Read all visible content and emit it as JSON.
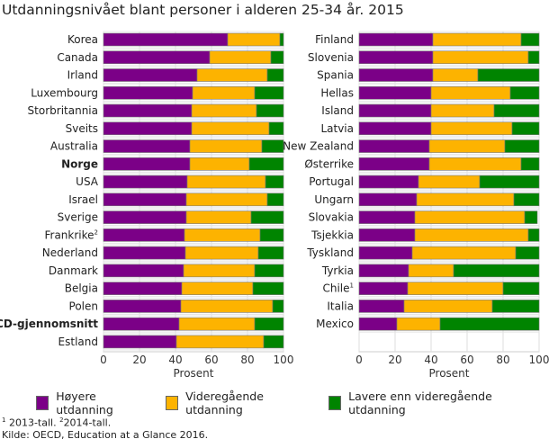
{
  "title": "Utdanningsnivået blant personer i alderen 25-34 år. 2015",
  "colors": {
    "higher": "#7b0087",
    "upper_secondary": "#fdb300",
    "lower": "#008400"
  },
  "footnotes": {
    "n1": "1",
    "t1": " 2013-tall. ",
    "n2": "2",
    "t2": "2014-tall.",
    "source": "Kilde: OECD, Education at a Glance 2016."
  },
  "legend": [
    "Høyere utdanning",
    "Videregående utdanning",
    "Lavere enn videregående utdanning"
  ],
  "chart_data": [
    {
      "type": "bar",
      "orientation": "horizontal",
      "stacked": true,
      "xlabel": "Prosent",
      "xlim": [
        0,
        100
      ],
      "xticks": [
        "0",
        "20",
        "40",
        "60",
        "80",
        "100"
      ],
      "grid": true,
      "categories": [
        {
          "label": "Korea"
        },
        {
          "label": "Canada"
        },
        {
          "label": "Irland"
        },
        {
          "label": "Luxembourg"
        },
        {
          "label": "Storbritannia"
        },
        {
          "label": "Sveits"
        },
        {
          "label": "Australia"
        },
        {
          "label": "Norge",
          "bold": true
        },
        {
          "label": "USA"
        },
        {
          "label": "Israel"
        },
        {
          "label": "Sverige"
        },
        {
          "label": "Frankrike",
          "sup": "2"
        },
        {
          "label": "Nederland"
        },
        {
          "label": "Danmark"
        },
        {
          "label": "Belgia"
        },
        {
          "label": "Polen"
        },
        {
          "label": "OECD-gjennomsnitt",
          "bold": true
        },
        {
          "label": "Estland"
        }
      ],
      "series": [
        {
          "name": "Høyere utdanning",
          "values": [
            69,
            59,
            52,
            49.5,
            49,
            49,
            48,
            48,
            46.5,
            46,
            46,
            45,
            45.5,
            44.5,
            43.5,
            43,
            42,
            40.5
          ]
        },
        {
          "name": "Videregående utdanning",
          "values": [
            29,
            34,
            39,
            34.5,
            36,
            43,
            40,
            33,
            43.5,
            45,
            36,
            42,
            40.5,
            39.5,
            39.5,
            51,
            42,
            48.5
          ]
        },
        {
          "name": "Lavere enn videregående utdanning",
          "values": [
            2,
            7,
            9,
            16,
            15,
            8,
            12,
            19,
            10,
            9,
            18,
            13,
            14,
            16,
            17,
            6,
            16,
            11
          ]
        }
      ]
    },
    {
      "type": "bar",
      "orientation": "horizontal",
      "stacked": true,
      "xlabel": "Prosent",
      "xlim": [
        0,
        100
      ],
      "xticks": [
        "0",
        "20",
        "40",
        "60",
        "80",
        "100"
      ],
      "grid": true,
      "categories": [
        {
          "label": "Finland"
        },
        {
          "label": "Slovenia"
        },
        {
          "label": "Spania"
        },
        {
          "label": "Hellas"
        },
        {
          "label": "Island"
        },
        {
          "label": "Latvia"
        },
        {
          "label": "New Zealand"
        },
        {
          "label": "Østerrike"
        },
        {
          "label": "Portugal"
        },
        {
          "label": "Ungarn"
        },
        {
          "label": "Slovakia"
        },
        {
          "label": "Tsjekkia"
        },
        {
          "label": "Tyskland"
        },
        {
          "label": "Tyrkia"
        },
        {
          "label": "Chile",
          "sup": "1"
        },
        {
          "label": "Italia"
        },
        {
          "label": "Mexico"
        }
      ],
      "series": [
        {
          "name": "Høyere utdanning",
          "values": [
            41,
            41,
            41,
            40,
            40,
            40,
            39,
            39,
            33,
            32,
            31,
            31,
            29.5,
            27.5,
            27,
            25,
            21
          ]
        },
        {
          "name": "Videregående utdanning",
          "values": [
            49,
            53,
            25,
            44,
            35,
            45,
            42,
            51,
            34,
            54,
            61,
            63,
            57.5,
            25,
            53,
            49,
            24
          ]
        },
        {
          "name": "Lavere enn videregående utdanning",
          "values": [
            10,
            6,
            34,
            16,
            25,
            15,
            19,
            10,
            33,
            14,
            7,
            6,
            13,
            47.5,
            20,
            26,
            55
          ]
        }
      ]
    }
  ]
}
